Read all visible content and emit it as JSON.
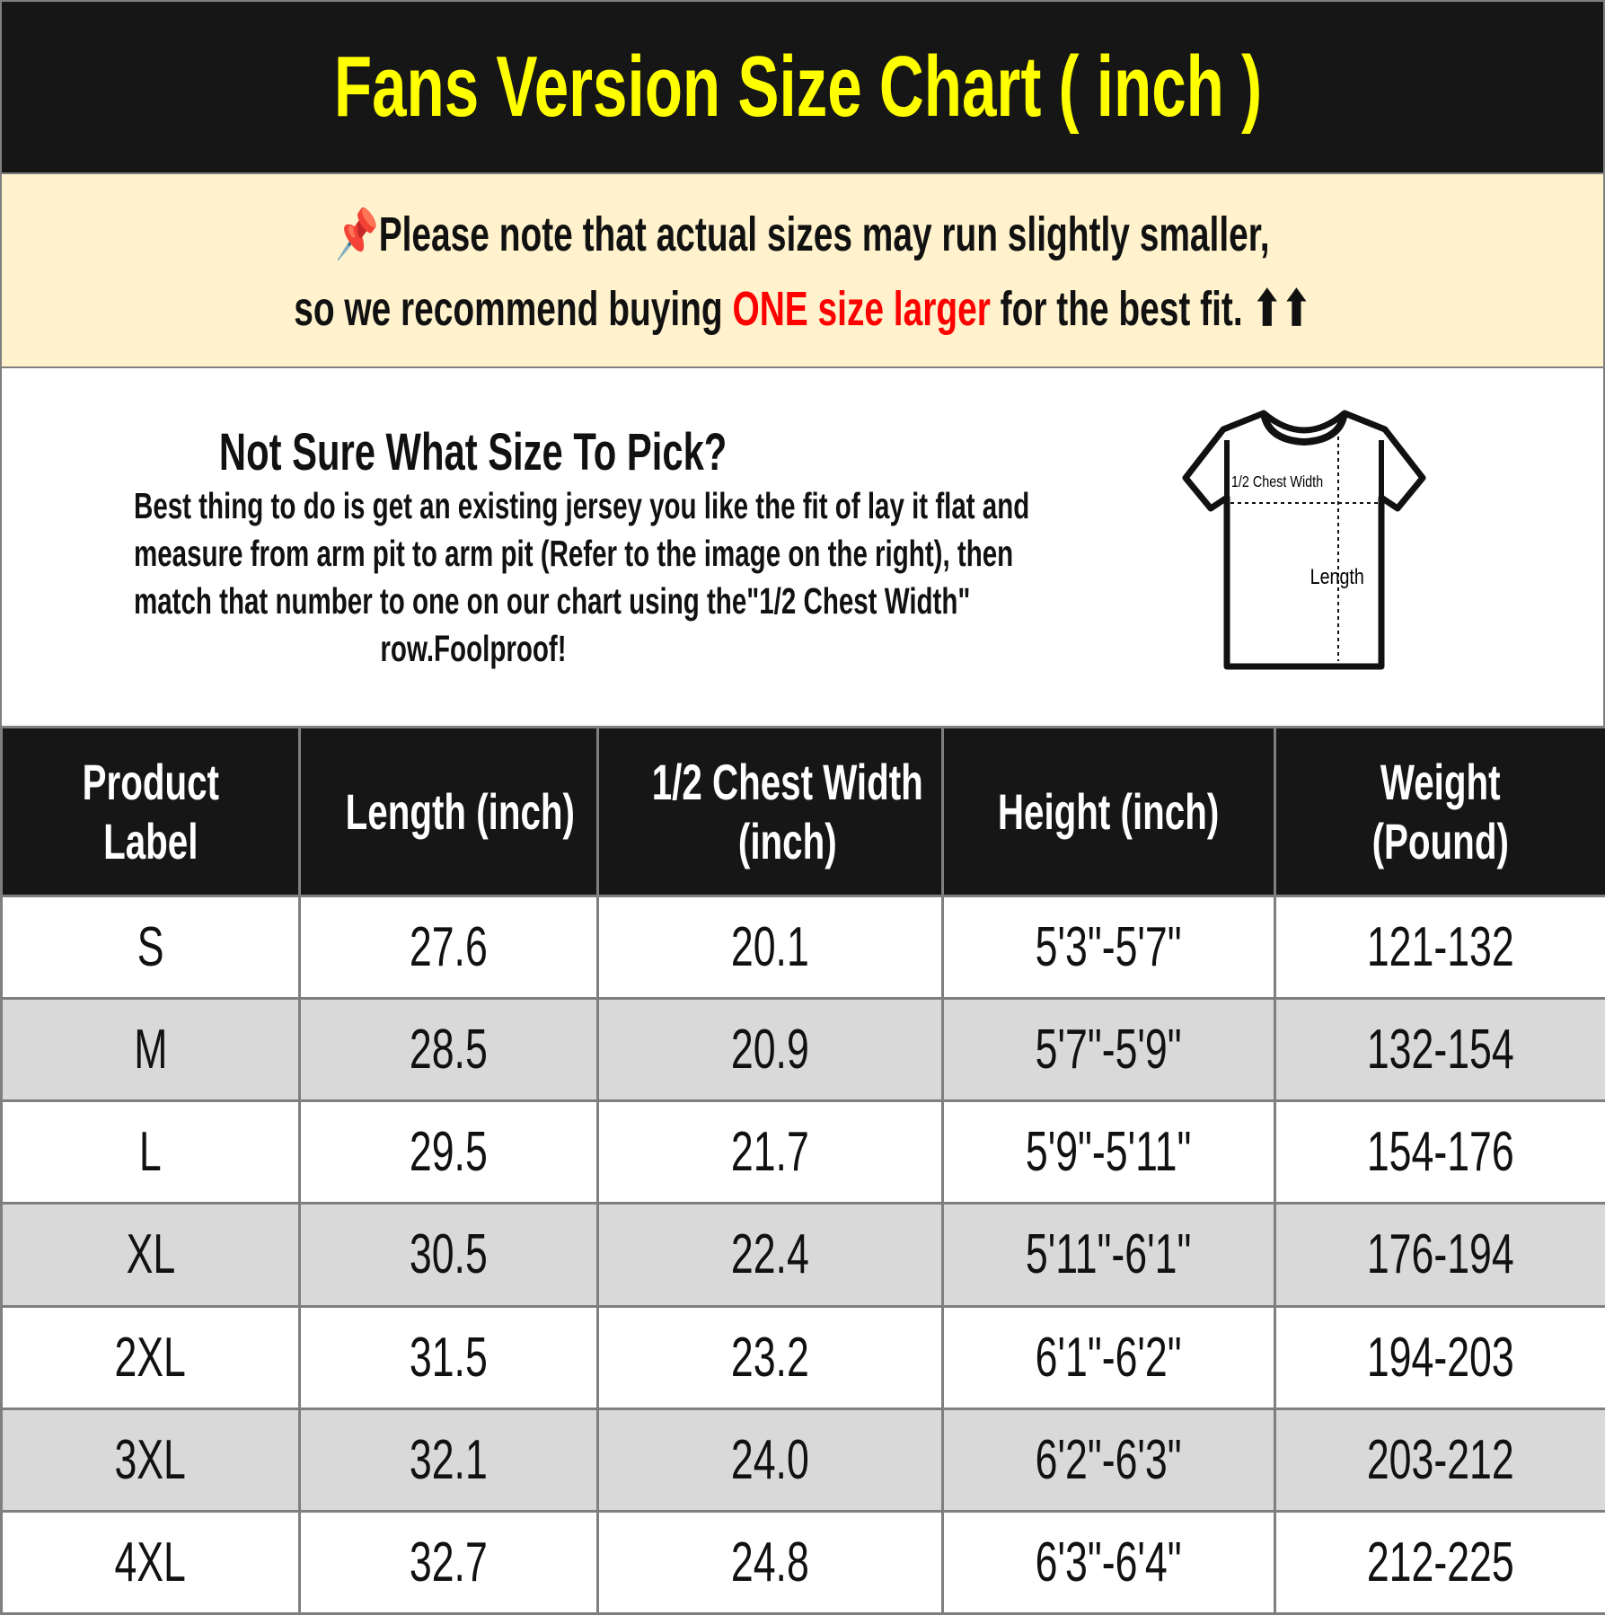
{
  "title": "Fans Version Size Chart ( inch )",
  "notice": {
    "pin_icon": "pushpin-icon",
    "line1": "Please note that actual sizes may run slightly smaller,",
    "line2_before": "so we recommend buying ",
    "line2_highlight": "ONE size larger",
    "line2_after": " for the best fit.",
    "arrows": "⬆⬆",
    "highlight_color": "#ff0000"
  },
  "info": {
    "heading": "Not Sure What Size To Pick?",
    "body_lines": [
      "Best thing to do is get an existing jersey you like the fit of lay it flat and",
      "measure from arm pit to arm pit (Refer to the image on the right), then",
      "match that number to one on our chart using the\"1/2 Chest Width\"",
      "row.Foolproof!"
    ],
    "diagram": {
      "chest_label": "1/2 Chest Width",
      "length_label": "Length"
    }
  },
  "table": {
    "headers": [
      [
        "Product",
        "Label"
      ],
      [
        "Length (inch)"
      ],
      [
        "1/2 Chest Width",
        "(inch)"
      ],
      [
        "Height (inch)"
      ],
      [
        "Weight",
        "(Pound)"
      ]
    ],
    "rows": [
      [
        "S",
        "27.6",
        "20.1",
        "5'3\"-5'7\"",
        "121-132"
      ],
      [
        "M",
        "28.5",
        "20.9",
        "5'7\"-5'9\"",
        "132-154"
      ],
      [
        "L",
        "29.5",
        "21.7",
        "5'9\"-5'11\"",
        "154-176"
      ],
      [
        "XL",
        "30.5",
        "22.4",
        "5'11\"-6'1\"",
        "176-194"
      ],
      [
        "2XL",
        "31.5",
        "23.2",
        "6'1\"-6'2\"",
        "194-203"
      ],
      [
        "3XL",
        "32.1",
        "24.0",
        "6'2\"-6'3\"",
        "203-212"
      ],
      [
        "4XL",
        "32.7",
        "24.8",
        "6'3\"-6'4\"",
        "212-225"
      ]
    ]
  },
  "colors": {
    "title_bg": "#161616",
    "title_text": "#ffff00",
    "notice_bg": "#fff2cc",
    "alt_row": "#d9d9d9"
  }
}
